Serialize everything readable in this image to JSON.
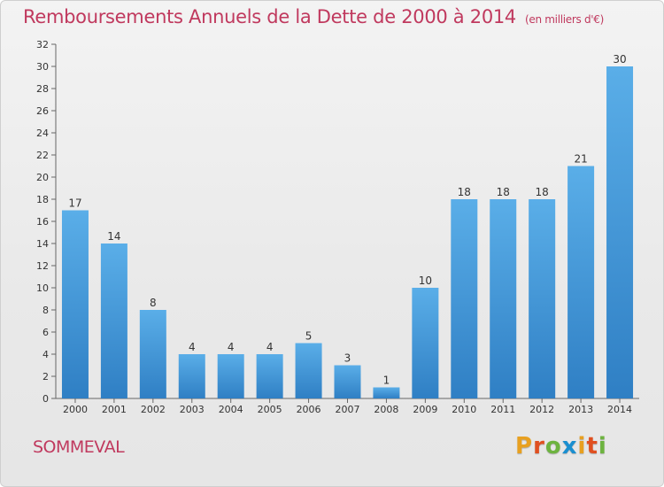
{
  "header": {
    "title": "Remboursements Annuels de la Dette de 2000 à 2014",
    "subtitle": "(en milliers d'€)"
  },
  "footer": {
    "commune": "SOMMEVAL",
    "logo_text": "Proxiti"
  },
  "colors": {
    "title": "#c0395e",
    "bar_top": "#5aaee8",
    "bar_bottom": "#2f7fc4",
    "logo_letters": [
      "#e8a020",
      "#e05020",
      "#6db33f",
      "#1a8fd0",
      "#e8a020",
      "#e05020",
      "#6db33f"
    ]
  },
  "chart_data": {
    "type": "bar",
    "title": "Remboursements Annuels de la Dette de 2000 à 2014",
    "subtitle": "(en milliers d'€)",
    "categories": [
      "2000",
      "2001",
      "2002",
      "2003",
      "2004",
      "2005",
      "2006",
      "2007",
      "2008",
      "2009",
      "2010",
      "2011",
      "2012",
      "2013",
      "2014"
    ],
    "values": [
      17,
      14,
      8,
      4,
      4,
      4,
      5,
      3,
      1,
      10,
      18,
      18,
      18,
      21,
      30
    ],
    "ylim": [
      0,
      32
    ],
    "yticks": [
      0,
      2,
      4,
      6,
      8,
      10,
      12,
      14,
      16,
      18,
      20,
      22,
      24,
      26,
      28,
      30,
      32
    ],
    "grid": false,
    "xlabel": "",
    "ylabel": ""
  }
}
